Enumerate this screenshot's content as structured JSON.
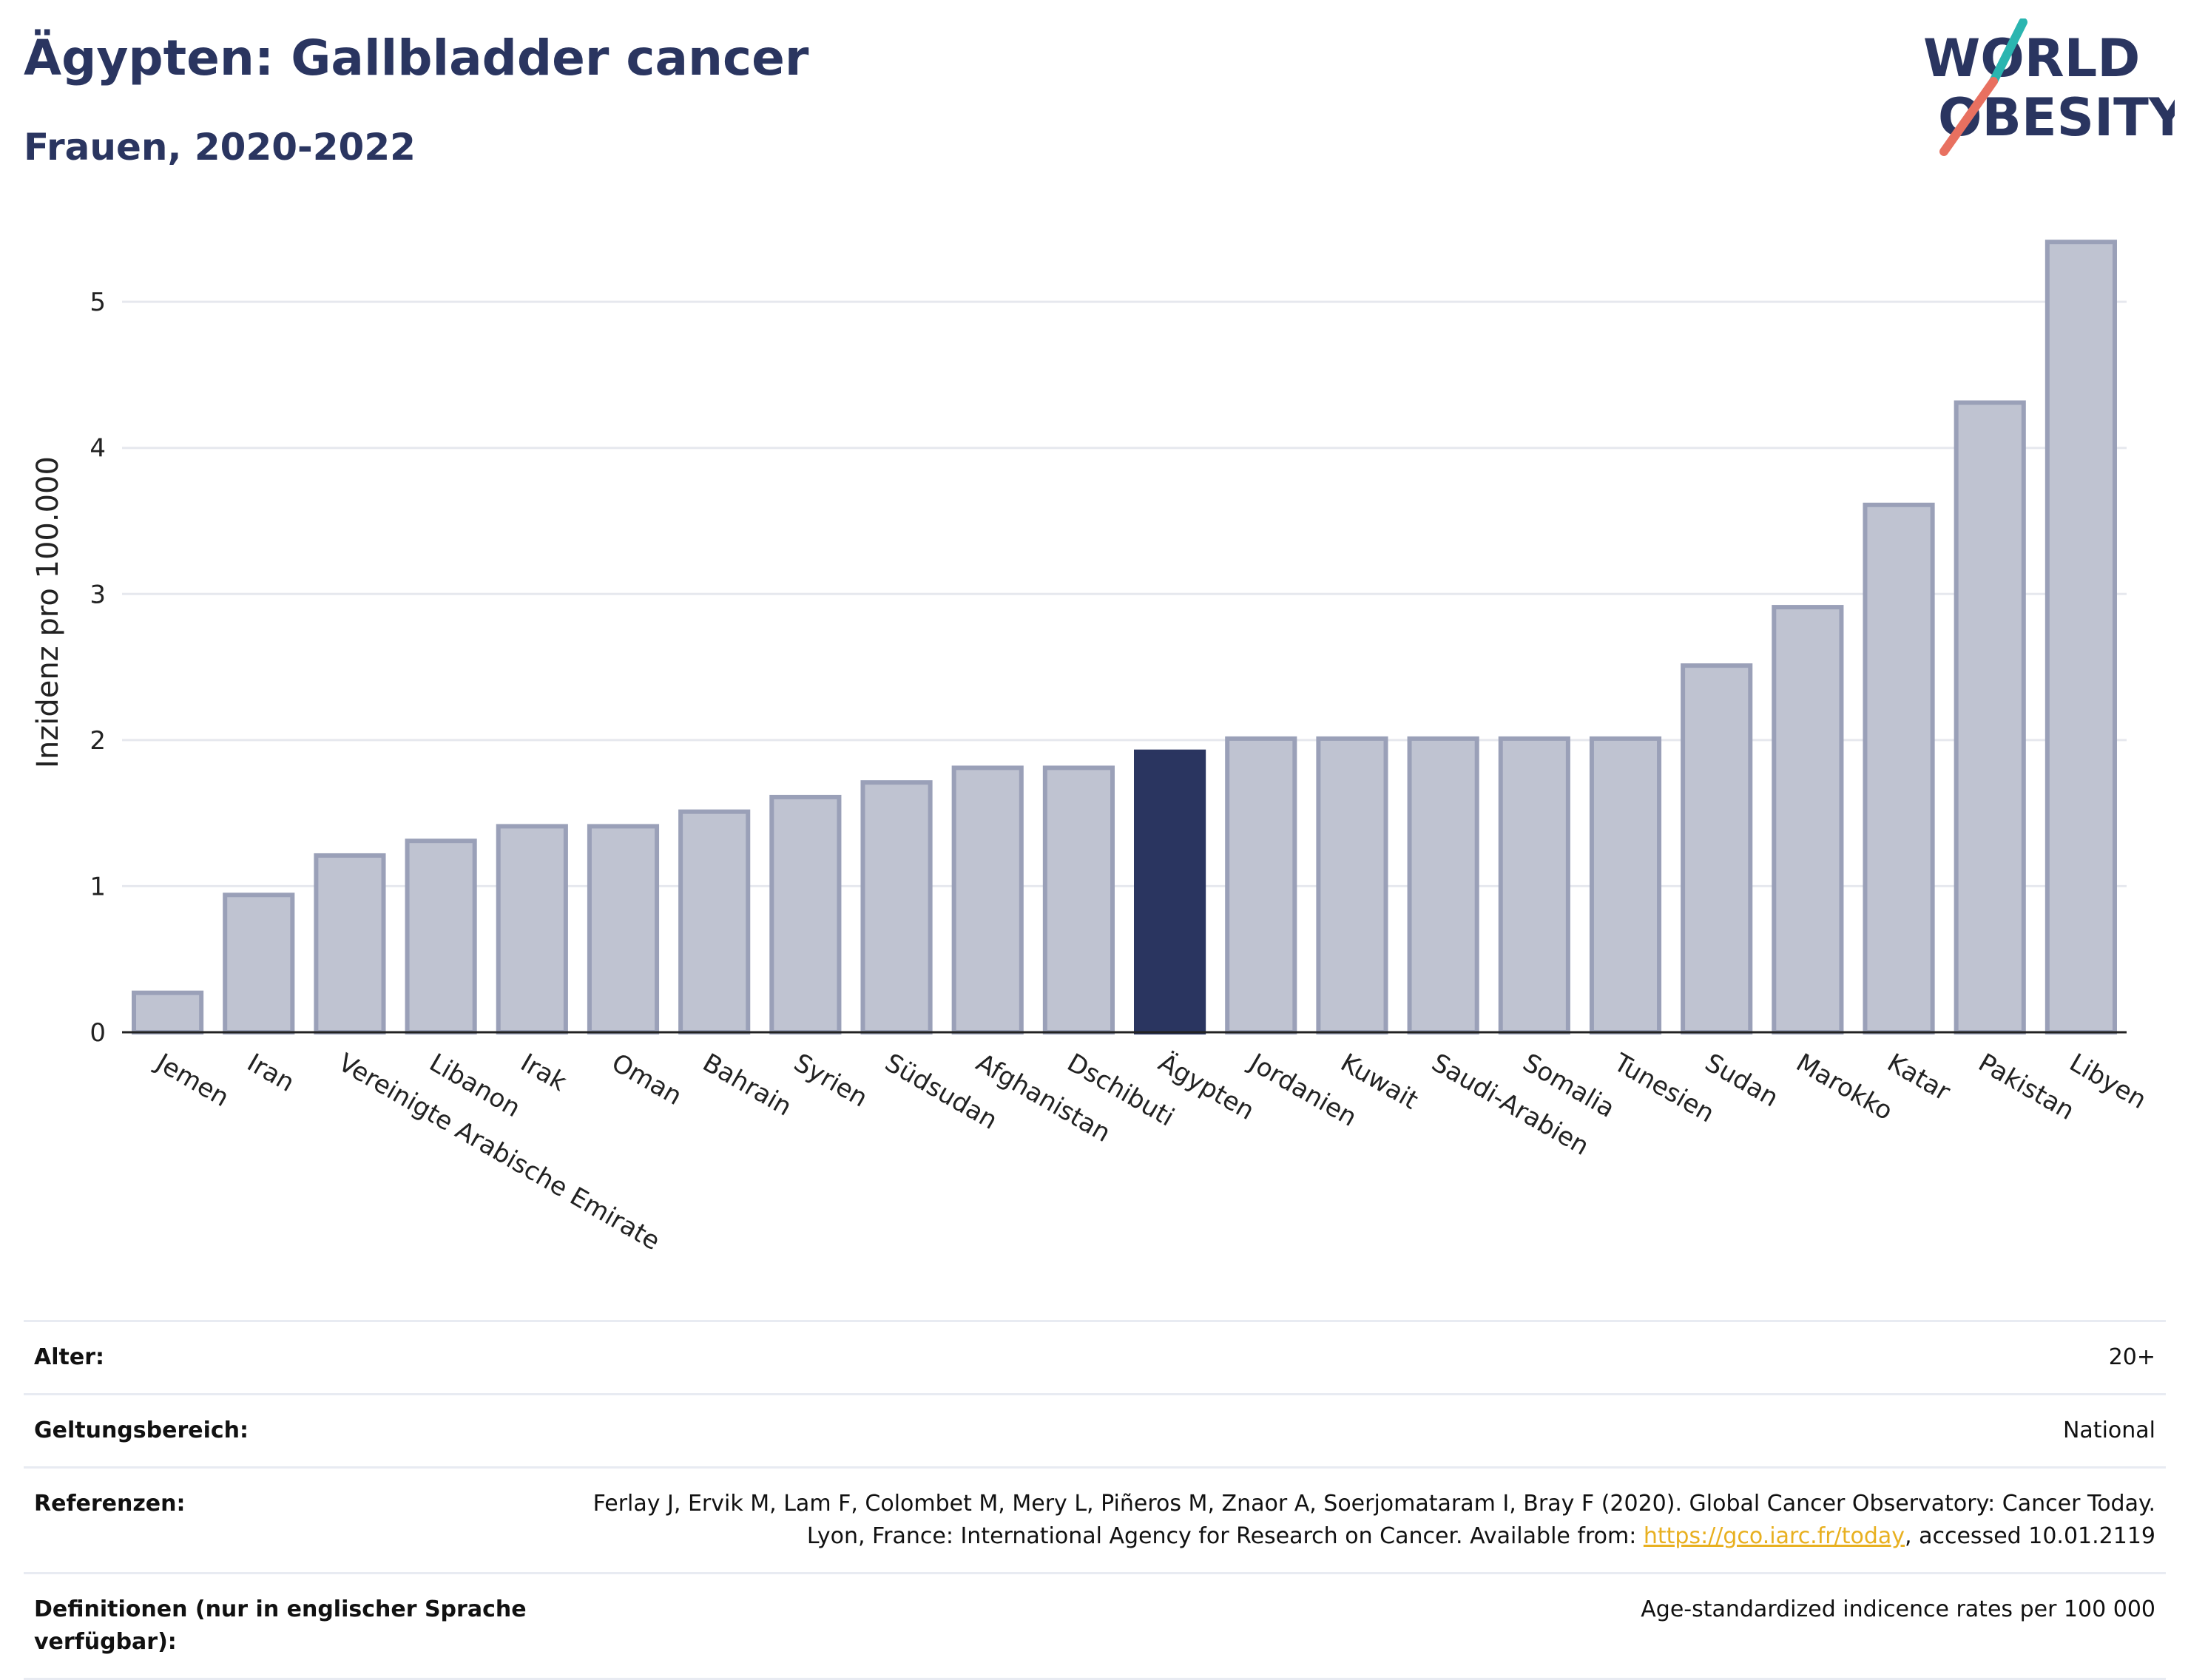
{
  "header": {
    "title": "Ägypten: Gallbladder cancer",
    "subtitle": "Frauen, 2020-2022"
  },
  "logo": {
    "line1": "WORLD",
    "line2": "OBESITY",
    "colors": {
      "text": "#2a3560",
      "slash_top": "#2ab5b0",
      "slash_bottom": "#e87060"
    }
  },
  "chart_data": {
    "type": "bar",
    "title": "",
    "xlabel": "",
    "ylabel": "Inzidenz pro 100.000",
    "ylim": [
      0,
      5.75
    ],
    "yticks": [
      0,
      1,
      2,
      3,
      4,
      5
    ],
    "grid": true,
    "highlight_category": "Ägypten",
    "colors": {
      "bar": "#bfc3d1",
      "bar_border": "#9aa0b8",
      "highlight": "#2a3560",
      "grid": "#e6e8ee"
    },
    "categories": [
      "Jemen",
      "Iran",
      "Vereinigte Arabische Emirate",
      "Libanon",
      "Irak",
      "Oman",
      "Bahrain",
      "Syrien",
      "Südsudan",
      "Afghanistan",
      "Dschibuti",
      "Ägypten",
      "Jordanien",
      "Kuwait",
      "Saudi-Arabien",
      "Somalia",
      "Tunesien",
      "Sudan",
      "Marokko",
      "Katar",
      "Pakistan",
      "Libyen"
    ],
    "values": [
      0.27,
      0.94,
      1.21,
      1.31,
      1.41,
      1.41,
      1.51,
      1.61,
      1.71,
      1.81,
      1.81,
      1.92,
      2.01,
      2.01,
      2.01,
      2.01,
      2.01,
      2.51,
      2.91,
      3.61,
      4.31,
      5.41
    ]
  },
  "meta": {
    "rows": [
      {
        "label": "Alter:",
        "value": "20+"
      },
      {
        "label": "Geltungsbereich:",
        "value": "National"
      }
    ],
    "references": {
      "label": "Referenzen:",
      "text_before": "Ferlay J, Ervik M, Lam F, Colombet M, Mery L, Piñeros M, Znaor A, Soerjomataram I, Bray F (2020). Global Cancer Observatory: Cancer Today. Lyon, France: International Agency for Research on Cancer. Available from: ",
      "link": "https://gco.iarc.fr/today",
      "text_after": ", accessed 10.01.2119"
    },
    "definitions": {
      "label": "Definitionen (nur in englischer Sprache verfügbar):",
      "value": "Age-standardized indicence rates per 100 000"
    }
  }
}
